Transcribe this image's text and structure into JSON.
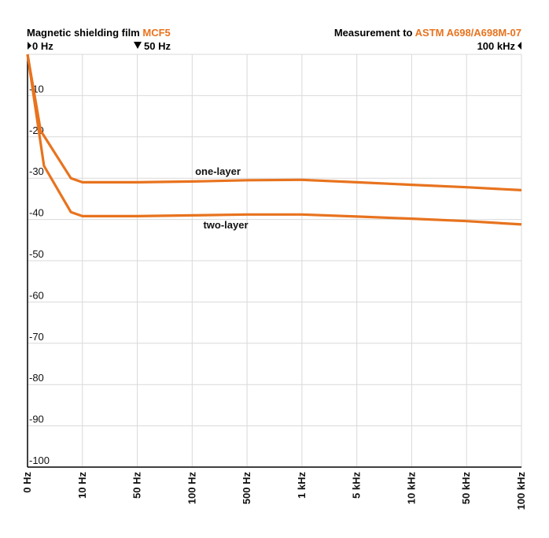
{
  "header": {
    "left_prefix": "Magnetic shielding film ",
    "left_accent": "MCF5",
    "right_prefix": "Measurement to ",
    "right_accent": "ASTM A698/A698M-07"
  },
  "markers": {
    "start": "0 Hz",
    "mid": "50 Hz",
    "end": "100 kHz"
  },
  "colors": {
    "accent": "#e8731e",
    "grid": "#d9d9d9"
  },
  "chart_data": {
    "type": "line",
    "categories": [
      "0 Hz",
      "10 Hz",
      "50 Hz",
      "100 Hz",
      "500 Hz",
      "1 kHz",
      "5 kHz",
      "10 kHz",
      "50 kHz",
      "100 kHz"
    ],
    "ylim": [
      -100,
      0
    ],
    "yticks": [
      "-10",
      "-20",
      "-30",
      "-40",
      "-50",
      "-60",
      "-70",
      "-80",
      "-90",
      "-100"
    ],
    "grid": true,
    "series": [
      {
        "name": "one-layer",
        "points": [
          [
            0,
            0
          ],
          [
            0.24,
            -18.5
          ],
          [
            0.79,
            -30
          ],
          [
            1,
            -31
          ],
          [
            2,
            -31
          ],
          [
            3,
            -30.8
          ],
          [
            4,
            -30.5
          ],
          [
            5,
            -30.4
          ],
          [
            6,
            -31
          ],
          [
            7,
            -31.6
          ],
          [
            8,
            -32.2
          ],
          [
            9,
            -32.9
          ]
        ]
      },
      {
        "name": "two-layer",
        "points": [
          [
            0,
            0
          ],
          [
            0.3,
            -27
          ],
          [
            0.79,
            -38.2
          ],
          [
            1,
            -39.2
          ],
          [
            2,
            -39.2
          ],
          [
            3,
            -39
          ],
          [
            4,
            -38.8
          ],
          [
            5,
            -38.8
          ],
          [
            6,
            -39.3
          ],
          [
            7,
            -39.8
          ],
          [
            8,
            -40.4
          ],
          [
            9,
            -41.2
          ]
        ]
      }
    ],
    "annotations": [
      "one-layer",
      "two-layer"
    ]
  }
}
